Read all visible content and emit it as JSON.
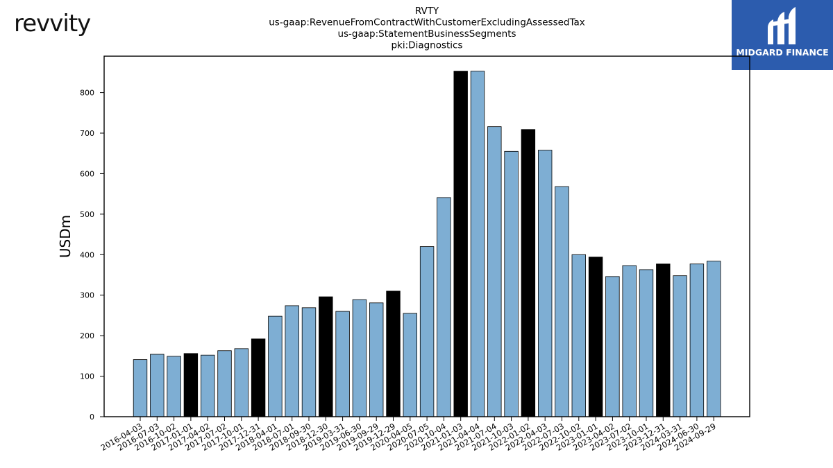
{
  "brand": {
    "left_logo": "revvity",
    "right_logo": "MIDGARD FINANCE"
  },
  "colors": {
    "bar_default": "#7eaed3",
    "bar_highlight": "#000000",
    "brand_blue": "#2c5cae"
  },
  "chart_data": {
    "type": "bar",
    "title_lines": [
      "RVTY",
      "us-gaap:RevenueFromContractWithCustomerExcludingAssessedTax",
      "us-gaap:StatementBusinessSegments",
      "pki:Diagnostics"
    ],
    "xlabel": "",
    "ylabel": "USDm",
    "ylim": [
      0,
      890
    ],
    "yticks": [
      0,
      100,
      200,
      300,
      400,
      500,
      600,
      700,
      800
    ],
    "categories": [
      "2016-04-03",
      "2016-07-03",
      "2016-10-02",
      "2017-01-01",
      "2017-04-02",
      "2017-07-02",
      "2017-10-01",
      "2017-12-31",
      "2018-04-01",
      "2018-07-01",
      "2018-09-30",
      "2018-12-30",
      "2019-03-31",
      "2019-06-30",
      "2019-09-29",
      "2019-12-29",
      "2020-04-05",
      "2020-07-05",
      "2020-10-04",
      "2021-01-03",
      "2021-04-04",
      "2021-07-04",
      "2021-10-03",
      "2022-01-02",
      "2022-04-03",
      "2022-07-03",
      "2022-10-02",
      "2023-01-01",
      "2023-04-02",
      "2023-07-02",
      "2023-10-01",
      "2023-12-31",
      "2024-03-31",
      "2024-06-30",
      "2024-09-29"
    ],
    "values": [
      141,
      154,
      149,
      156,
      152,
      163,
      168,
      192,
      248,
      274,
      269,
      296,
      260,
      289,
      281,
      310,
      255,
      420,
      541,
      853,
      853,
      716,
      655,
      709,
      658,
      568,
      400,
      394,
      346,
      373,
      363,
      377,
      348,
      377,
      384
    ],
    "highlight": [
      false,
      false,
      false,
      true,
      false,
      false,
      false,
      true,
      false,
      false,
      false,
      true,
      false,
      false,
      false,
      true,
      false,
      false,
      false,
      true,
      false,
      false,
      false,
      true,
      false,
      false,
      false,
      true,
      false,
      false,
      false,
      true,
      false,
      false,
      false
    ],
    "grid": false,
    "legend": "none"
  }
}
